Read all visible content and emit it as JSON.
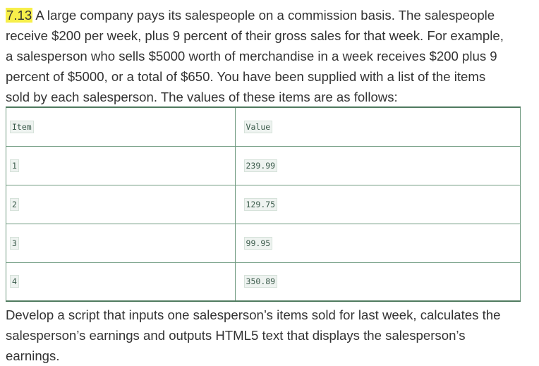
{
  "exercise": {
    "number": "7.13",
    "intro_lines": [
      " A large company pays its salespeople on a commission basis. The salespeople",
      "receive $200 per week, plus 9 percent of their gross sales for that week. For example,",
      "a salesperson who sells $5000 worth of merchandise in a week receives $200 plus 9",
      "percent of $5000, or a total of $650. You have been supplied with a list of the items",
      "sold by each salesperson. The values of these items are as follows:"
    ],
    "outro_lines": [
      "Develop a script that inputs one salesperson’s items sold for last week, calculates the",
      "salesperson’s earnings and outputs HTML5 text that displays the salesperson’s",
      "earnings."
    ]
  },
  "table": {
    "headers": [
      "Item",
      "Value"
    ],
    "rows": [
      {
        "item": "1",
        "value": "239.99"
      },
      {
        "item": "2",
        "value": "129.75"
      },
      {
        "item": "3",
        "value": "99.95"
      },
      {
        "item": "4",
        "value": "350.89"
      }
    ]
  },
  "colors": {
    "highlight": "#f7ef4a",
    "table_border": "#4f7a5f",
    "text": "#333333"
  }
}
